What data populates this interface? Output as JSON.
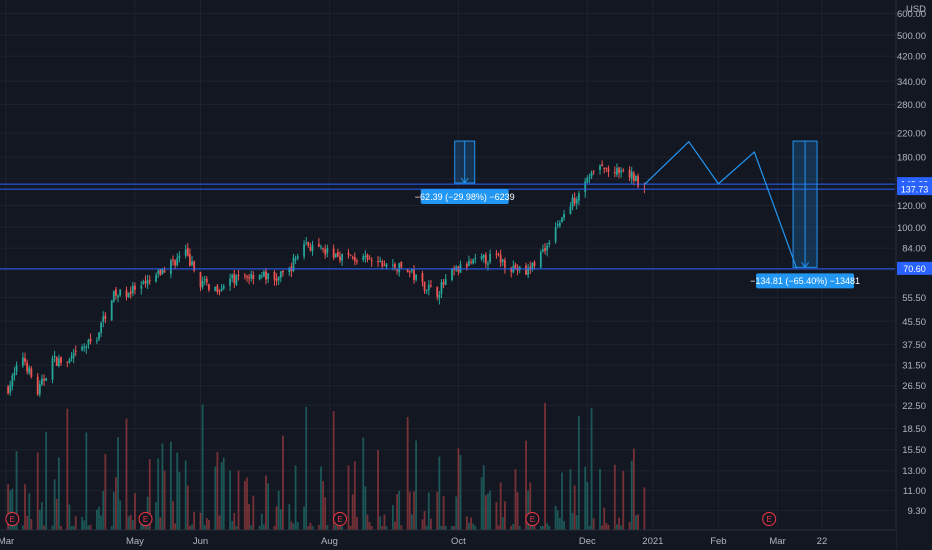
{
  "chart_data": {
    "type": "candlestick",
    "currency": "USD",
    "y_scale": "log",
    "ylim": [
      8.6,
      650
    ],
    "y_ticks": [
      9.3,
      11.0,
      13.0,
      15.5,
      18.5,
      22.5,
      26.5,
      31.5,
      37.5,
      45.5,
      55.5,
      70.0,
      84.0,
      100.0,
      120.0,
      150.0,
      180.0,
      220.0,
      280.0,
      340.0,
      420.0,
      500.0,
      600.0
    ],
    "y_tick_labels": [
      "9.30",
      "11.00",
      "13.00",
      "15.50",
      "18.50",
      "22.50",
      "26.50",
      "31.50",
      "37.50",
      "45.50",
      "55.50",
      "",
      "84.00",
      "100.00",
      "120.00",
      "",
      "180.00",
      "220.00",
      "280.00",
      "340.00",
      "420.00",
      "500.00",
      "600.00"
    ],
    "x_range": [
      "2020-03-01",
      "2021-03-31"
    ],
    "x_ticks": [
      {
        "date": "2020-03-01",
        "label": "Mar"
      },
      {
        "date": "2020-05-01",
        "label": "May"
      },
      {
        "date": "2020-06-01",
        "label": "Jun"
      },
      {
        "date": "2020-08-01",
        "label": "Aug"
      },
      {
        "date": "2020-10-01",
        "label": "Oct"
      },
      {
        "date": "2020-12-01",
        "label": "Dec"
      },
      {
        "date": "2021-01-01",
        "label": "2021"
      },
      {
        "date": "2021-02-01",
        "label": "Feb"
      },
      {
        "date": "2021-03-01",
        "label": "Mar"
      },
      {
        "date": "2021-03-22",
        "label": "22"
      }
    ],
    "price_path": [
      [
        "2020-03-02",
        26
      ],
      [
        "2020-03-09",
        34
      ],
      [
        "2020-03-16",
        25
      ],
      [
        "2020-03-23",
        33
      ],
      [
        "2020-03-30",
        32
      ],
      [
        "2020-04-06",
        36
      ],
      [
        "2020-04-13",
        40
      ],
      [
        "2020-04-20",
        56
      ],
      [
        "2020-04-27",
        58
      ],
      [
        "2020-05-04",
        60
      ],
      [
        "2020-05-11",
        66
      ],
      [
        "2020-05-18",
        74
      ],
      [
        "2020-05-25",
        80
      ],
      [
        "2020-06-01",
        63
      ],
      [
        "2020-06-08",
        60
      ],
      [
        "2020-06-15",
        64
      ],
      [
        "2020-06-22",
        66
      ],
      [
        "2020-06-29",
        68
      ],
      [
        "2020-07-06",
        64
      ],
      [
        "2020-07-13",
        70
      ],
      [
        "2020-07-20",
        88
      ],
      [
        "2020-07-27",
        82
      ],
      [
        "2020-08-03",
        80
      ],
      [
        "2020-08-10",
        78
      ],
      [
        "2020-08-17",
        76
      ],
      [
        "2020-08-24",
        74
      ],
      [
        "2020-08-31",
        72
      ],
      [
        "2020-09-07",
        70
      ],
      [
        "2020-09-14",
        62
      ],
      [
        "2020-09-21",
        58
      ],
      [
        "2020-09-28",
        68
      ],
      [
        "2020-10-05",
        73
      ],
      [
        "2020-10-12",
        76
      ],
      [
        "2020-10-19",
        78
      ],
      [
        "2020-10-26",
        72
      ],
      [
        "2020-11-02",
        68
      ],
      [
        "2020-11-09",
        80
      ],
      [
        "2020-11-16",
        100
      ],
      [
        "2020-11-23",
        120
      ],
      [
        "2020-11-30",
        150
      ],
      [
        "2020-12-07",
        165
      ],
      [
        "2020-12-14",
        158
      ],
      [
        "2020-12-21",
        155
      ],
      [
        "2020-12-28",
        142
      ]
    ],
    "horizontal_lines": [
      {
        "price": 143.6,
        "label": "143.60",
        "color": "#2962ff"
      },
      {
        "price": 137.73,
        "label": "137.73",
        "color": "#2962ff"
      },
      {
        "price": 70.6,
        "label": "70.60",
        "color": "#2962ff"
      }
    ],
    "measure_annotations": [
      {
        "label": "−62.39 (−29.98%) −6239",
        "from_price": 206,
        "to_price": 145,
        "date": "2020-10-04"
      },
      {
        "label": "−134.81 (−65.40%) −13481",
        "from_price": 206,
        "to_price": 71.5,
        "date": "2021-03-14"
      }
    ],
    "projection_path": [
      [
        "2020-12-28",
        143
      ],
      [
        "2021-01-18",
        205
      ],
      [
        "2021-02-01",
        144
      ],
      [
        "2021-02-18",
        188
      ],
      [
        "2021-03-10",
        71
      ]
    ],
    "earnings_markers": [
      {
        "date": "2020-03-04",
        "label": "E"
      },
      {
        "date": "2020-05-06",
        "label": "E"
      },
      {
        "date": "2020-08-06",
        "label": "E"
      },
      {
        "date": "2020-11-05",
        "label": "E"
      },
      {
        "date": "2021-02-25",
        "label": "E"
      }
    ],
    "colors": {
      "background": "#131722",
      "grid": "#1e222d",
      "up": "#26a69a",
      "down": "#ef5350",
      "drawing": "#2196f3",
      "axis_text": "#b2b5be"
    }
  }
}
